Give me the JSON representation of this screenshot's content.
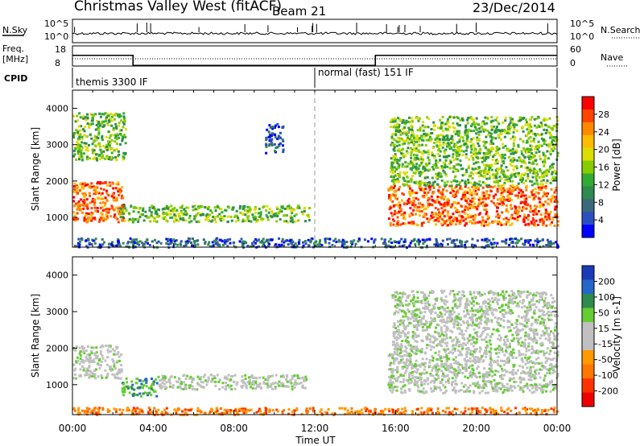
{
  "header": {
    "station": "Christmas Valley West (fitACF)",
    "beam": "Beam 21",
    "date": "23/Dec/2014"
  },
  "labels": {
    "nsky": "N.Sky",
    "nsearch": "N.Search",
    "freq_line1": "Freq.",
    "freq_line2": "[MHz]",
    "nave": "Nave",
    "cpid": "CPID",
    "cpid_left": "themis 3300 IF",
    "cpid_right": "normal (fast) 151 IF"
  },
  "noise_panel": {
    "left_ticks": [
      "10^5",
      "10^0"
    ],
    "right_ticks": [
      "10^5",
      "10^0"
    ]
  },
  "freq_panel": {
    "left_ticks": [
      "18",
      "8"
    ],
    "right_ticks": [
      "60",
      "0"
    ],
    "freq_steps": [
      {
        "t0": 0,
        "t1": 3.0,
        "mhz": 14.5
      },
      {
        "t0": 3.0,
        "t1": 15.0,
        "mhz": 9.5
      },
      {
        "t0": 15.0,
        "t1": 24.0,
        "mhz": 14.5
      }
    ]
  },
  "cpid_change_hour": 12,
  "power_colorbar": {
    "label": "Power [dB]",
    "ticks": [
      "28",
      "24",
      "20",
      "16",
      "12",
      "8",
      "4"
    ],
    "colors": [
      "#ff0000",
      "#ff4400",
      "#ff8800",
      "#ffbb00",
      "#dddd00",
      "#88cc00",
      "#33aa33",
      "#2f8a4f",
      "#3a6a7a",
      "#2a50c0",
      "#0000ff"
    ]
  },
  "velocity_colorbar": {
    "label": "Velocity [m s-1]",
    "ticks": [
      "200",
      "100",
      "50",
      "15",
      "-15",
      "-50",
      "-100",
      "-200"
    ],
    "colors": [
      "#1a3ab8",
      "#2566c8",
      "#2f8a4f",
      "#66cc33",
      "#c0c0c0",
      "#c0c0c0",
      "#ff9900",
      "#ff7700",
      "#ff3300",
      "#ee0000"
    ]
  },
  "chart_data": [
    {
      "type": "heatmap",
      "name": "power",
      "xlabel": "",
      "ylabel": "Slant Range [km]",
      "xlim": [
        0,
        24
      ],
      "ylim": [
        180,
        4500
      ],
      "yticks": [
        1000,
        2000,
        3000,
        4000
      ],
      "regions": [
        {
          "t0": 0.0,
          "t1": 2.5,
          "r0": 900,
          "r1": 2000,
          "level": "high"
        },
        {
          "t0": 0.0,
          "t1": 2.6,
          "r0": 2600,
          "r1": 3900,
          "level": "mid"
        },
        {
          "t0": 2.3,
          "t1": 11.7,
          "r0": 900,
          "r1": 1350,
          "level": "mid"
        },
        {
          "t0": 9.5,
          "t1": 10.4,
          "r0": 2800,
          "r1": 3600,
          "level": "low"
        },
        {
          "t0": 15.6,
          "t1": 24.0,
          "r0": 800,
          "r1": 1900,
          "level": "high"
        },
        {
          "t0": 15.7,
          "t1": 24.0,
          "r0": 1900,
          "r1": 3800,
          "level": "mid"
        },
        {
          "t0": 0.0,
          "t1": 24.0,
          "r0": 200,
          "r1": 450,
          "level": "low"
        }
      ]
    },
    {
      "type": "heatmap",
      "name": "velocity",
      "xlabel": "Time UT",
      "ylabel": "Slant Range [km]",
      "xlim": [
        0,
        24
      ],
      "ylim": [
        180,
        4500
      ],
      "yticks": [
        1000,
        2000,
        3000,
        4000
      ],
      "xticks": [
        "00:00",
        "04:00",
        "08:00",
        "12:00",
        "16:00",
        "20:00",
        "00:00"
      ],
      "regions": [
        {
          "t0": 0.0,
          "t1": 2.4,
          "r0": 1200,
          "r1": 2100,
          "level": "zero"
        },
        {
          "t0": 2.4,
          "t1": 4.2,
          "r0": 700,
          "r1": 1200,
          "level": "pos"
        },
        {
          "t0": 4.2,
          "t1": 11.6,
          "r0": 900,
          "r1": 1300,
          "level": "zero"
        },
        {
          "t0": 15.6,
          "t1": 24.0,
          "r0": 800,
          "r1": 1900,
          "level": "zero"
        },
        {
          "t0": 15.8,
          "t1": 24.0,
          "r0": 1900,
          "r1": 3600,
          "level": "zero"
        },
        {
          "t0": 0.0,
          "t1": 24.0,
          "r0": 200,
          "r1": 400,
          "level": "neg"
        }
      ]
    }
  ]
}
